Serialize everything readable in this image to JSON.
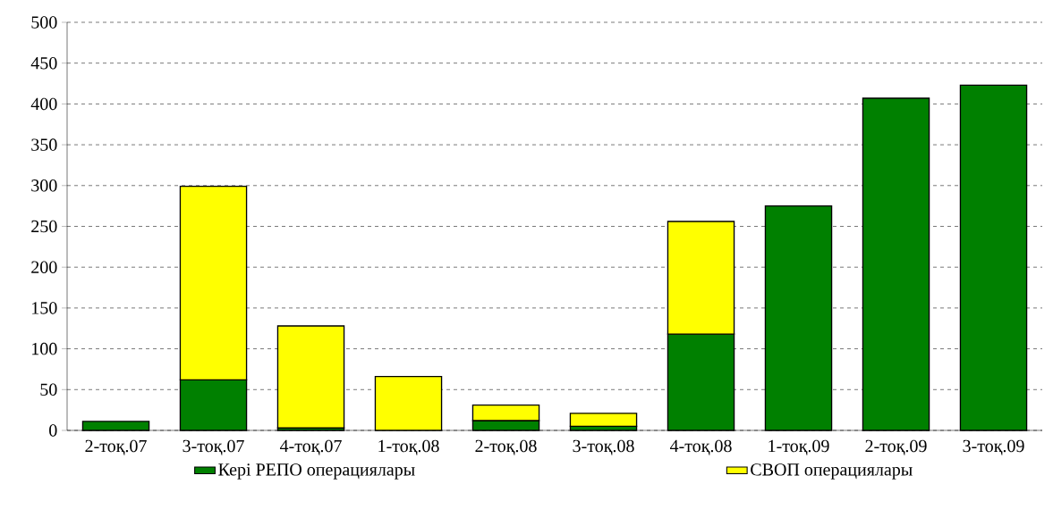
{
  "chart_data": {
    "type": "bar",
    "stacked": true,
    "categories": [
      "2-тоқ.07",
      "3-тоқ.07",
      "4-тоқ.07",
      "1-тоқ.08",
      "2-тоқ.08",
      "3-тоқ.08",
      "4-тоқ.08",
      "1-тоқ.09",
      "2-тоқ.09",
      "3-тоқ.09"
    ],
    "series": [
      {
        "name": "Кері РЕПО операциялары",
        "color": "#008000",
        "values": [
          11,
          62,
          3,
          null,
          12,
          5,
          118,
          275,
          407,
          423
        ]
      },
      {
        "name": "СВОП операциялары",
        "color": "#ffff00",
        "values": [
          null,
          237,
          125,
          66,
          19,
          16,
          138,
          null,
          null,
          null
        ]
      }
    ],
    "ylim": [
      0,
      500
    ],
    "yticks": [
      0,
      50,
      100,
      150,
      200,
      250,
      300,
      350,
      400,
      450,
      500
    ],
    "grid": "y",
    "legend": "bottom"
  }
}
